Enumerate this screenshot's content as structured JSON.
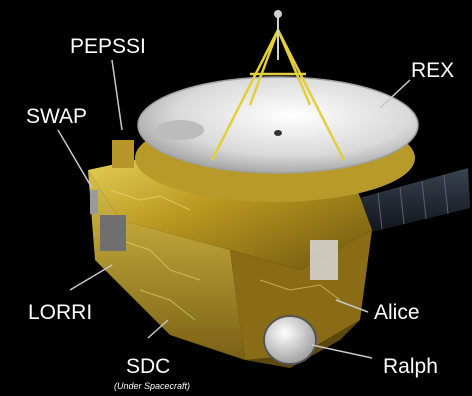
{
  "labels": {
    "pepssi": "PEPSSI",
    "swap": "SWAP",
    "rex": "REX",
    "lorri": "LORRI",
    "alice": "Alice",
    "ralph": "Ralph",
    "sdc": "SDC",
    "sdc_note": "(Under Spacecraft)"
  },
  "colors": {
    "background": "#000000",
    "label_text": "#ffffff",
    "leader_line": "#c8c8c8",
    "foil_gold": "#c9a227",
    "dish_white": "#e8e8e8",
    "solar_panel": "#1e2430"
  }
}
